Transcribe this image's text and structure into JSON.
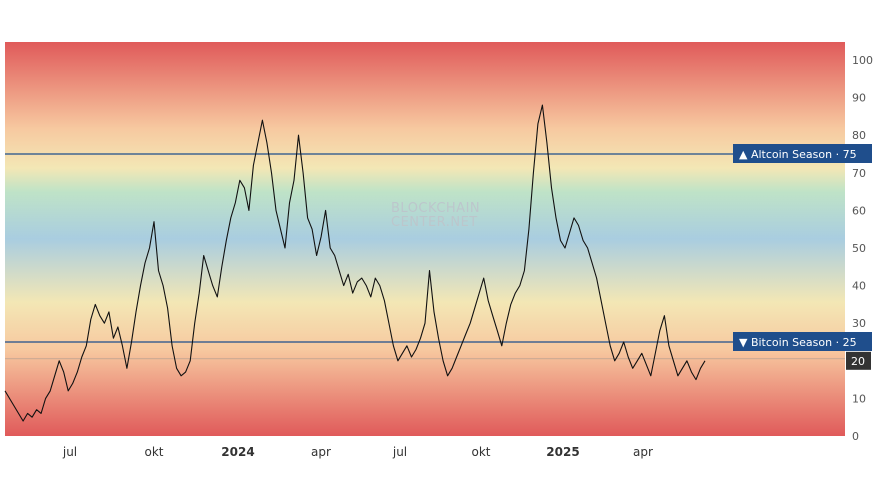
{
  "chart_data": {
    "type": "line",
    "y_range": [
      0,
      100
    ],
    "y_ticks": [
      "100",
      "90",
      "80",
      "70",
      "60",
      "50",
      "40",
      "30",
      "20",
      "10",
      "0"
    ],
    "x_ticks": [
      {
        "label": "jul",
        "bold": false
      },
      {
        "label": "okt",
        "bold": false
      },
      {
        "label": "2024",
        "bold": true
      },
      {
        "label": "apr",
        "bold": false
      },
      {
        "label": "jul",
        "bold": false
      },
      {
        "label": "okt",
        "bold": false
      },
      {
        "label": "2025",
        "bold": true
      },
      {
        "label": "apr",
        "bold": false
      }
    ],
    "watermark": [
      "BLOCKCHAIN",
      "CENTER.NET"
    ],
    "thresholds": [
      {
        "value": 75,
        "label": "▲ Altcoin Season · 75",
        "color": "#1f4e8c"
      },
      {
        "value": 25,
        "label": "▼ Bitcoin Season · 25",
        "color": "#1f4e8c"
      }
    ],
    "current_value": {
      "value": 20,
      "label": "20",
      "color": "#333333"
    },
    "grid": false,
    "background_bands": [
      "#e05a5a",
      "#f7c9a0",
      "#f3e7b5",
      "#bfe3c7",
      "#a9cde0",
      "#f3e7b5",
      "#f7c9a0",
      "#e05a5a"
    ],
    "series": [
      {
        "color": "#111111",
        "values": [
          [
            0,
            12
          ],
          [
            3,
            10
          ],
          [
            6,
            8
          ],
          [
            9,
            6
          ],
          [
            12,
            4
          ],
          [
            15,
            6
          ],
          [
            18,
            5
          ],
          [
            21,
            7
          ],
          [
            24,
            6
          ],
          [
            27,
            10
          ],
          [
            30,
            12
          ],
          [
            33,
            16
          ],
          [
            36,
            20
          ],
          [
            39,
            17
          ],
          [
            42,
            12
          ],
          [
            45,
            14
          ],
          [
            48,
            17
          ],
          [
            51,
            21
          ],
          [
            54,
            24
          ],
          [
            57,
            31
          ],
          [
            60,
            35
          ],
          [
            63,
            32
          ],
          [
            66,
            30
          ],
          [
            69,
            33
          ],
          [
            72,
            26
          ],
          [
            75,
            29
          ],
          [
            78,
            24
          ],
          [
            81,
            18
          ],
          [
            84,
            25
          ],
          [
            87,
            33
          ],
          [
            90,
            40
          ],
          [
            93,
            46
          ],
          [
            96,
            50
          ],
          [
            99,
            57
          ],
          [
            102,
            44
          ],
          [
            105,
            40
          ],
          [
            108,
            34
          ],
          [
            111,
            24
          ],
          [
            114,
            18
          ],
          [
            117,
            16
          ],
          [
            120,
            17
          ],
          [
            123,
            20
          ],
          [
            126,
            30
          ],
          [
            129,
            38
          ],
          [
            132,
            48
          ],
          [
            135,
            44
          ],
          [
            138,
            40
          ],
          [
            141,
            37
          ],
          [
            144,
            45
          ],
          [
            147,
            52
          ],
          [
            150,
            58
          ],
          [
            153,
            62
          ],
          [
            156,
            68
          ],
          [
            159,
            66
          ],
          [
            162,
            60
          ],
          [
            165,
            72
          ],
          [
            168,
            78
          ],
          [
            171,
            84
          ],
          [
            174,
            78
          ],
          [
            177,
            70
          ],
          [
            180,
            60
          ],
          [
            183,
            55
          ],
          [
            186,
            50
          ],
          [
            189,
            62
          ],
          [
            192,
            68
          ],
          [
            195,
            80
          ],
          [
            198,
            70
          ],
          [
            201,
            58
          ],
          [
            204,
            55
          ],
          [
            207,
            48
          ],
          [
            210,
            53
          ],
          [
            213,
            60
          ],
          [
            216,
            50
          ],
          [
            219,
            48
          ],
          [
            222,
            44
          ],
          [
            225,
            40
          ],
          [
            228,
            43
          ],
          [
            231,
            38
          ],
          [
            234,
            41
          ],
          [
            237,
            42
          ],
          [
            240,
            40
          ],
          [
            243,
            37
          ],
          [
            246,
            42
          ],
          [
            249,
            40
          ],
          [
            252,
            36
          ],
          [
            255,
            30
          ],
          [
            258,
            24
          ],
          [
            261,
            20
          ],
          [
            264,
            22
          ],
          [
            267,
            24
          ],
          [
            270,
            21
          ],
          [
            273,
            23
          ],
          [
            276,
            26
          ],
          [
            279,
            30
          ],
          [
            282,
            44
          ],
          [
            285,
            33
          ],
          [
            288,
            26
          ],
          [
            291,
            20
          ],
          [
            294,
            16
          ],
          [
            297,
            18
          ],
          [
            300,
            21
          ],
          [
            303,
            24
          ],
          [
            306,
            27
          ],
          [
            309,
            30
          ],
          [
            312,
            34
          ],
          [
            315,
            38
          ],
          [
            318,
            42
          ],
          [
            321,
            36
          ],
          [
            324,
            32
          ],
          [
            327,
            28
          ],
          [
            330,
            24
          ],
          [
            333,
            30
          ],
          [
            336,
            35
          ],
          [
            339,
            38
          ],
          [
            342,
            40
          ],
          [
            345,
            44
          ],
          [
            348,
            55
          ],
          [
            351,
            70
          ],
          [
            354,
            83
          ],
          [
            357,
            88
          ],
          [
            360,
            78
          ],
          [
            363,
            66
          ],
          [
            366,
            58
          ],
          [
            369,
            52
          ],
          [
            372,
            50
          ],
          [
            375,
            54
          ],
          [
            378,
            58
          ],
          [
            381,
            56
          ],
          [
            384,
            52
          ],
          [
            387,
            50
          ],
          [
            390,
            46
          ],
          [
            393,
            42
          ],
          [
            396,
            36
          ],
          [
            399,
            30
          ],
          [
            402,
            24
          ],
          [
            405,
            20
          ],
          [
            408,
            22
          ],
          [
            411,
            25
          ],
          [
            414,
            21
          ],
          [
            417,
            18
          ],
          [
            420,
            20
          ],
          [
            423,
            22
          ],
          [
            426,
            19
          ],
          [
            429,
            16
          ],
          [
            432,
            22
          ],
          [
            435,
            28
          ],
          [
            438,
            32
          ],
          [
            441,
            24
          ],
          [
            444,
            20
          ],
          [
            447,
            16
          ],
          [
            450,
            18
          ],
          [
            453,
            20
          ],
          [
            456,
            17
          ],
          [
            459,
            15
          ],
          [
            462,
            18
          ],
          [
            465,
            20
          ]
        ]
      }
    ]
  }
}
